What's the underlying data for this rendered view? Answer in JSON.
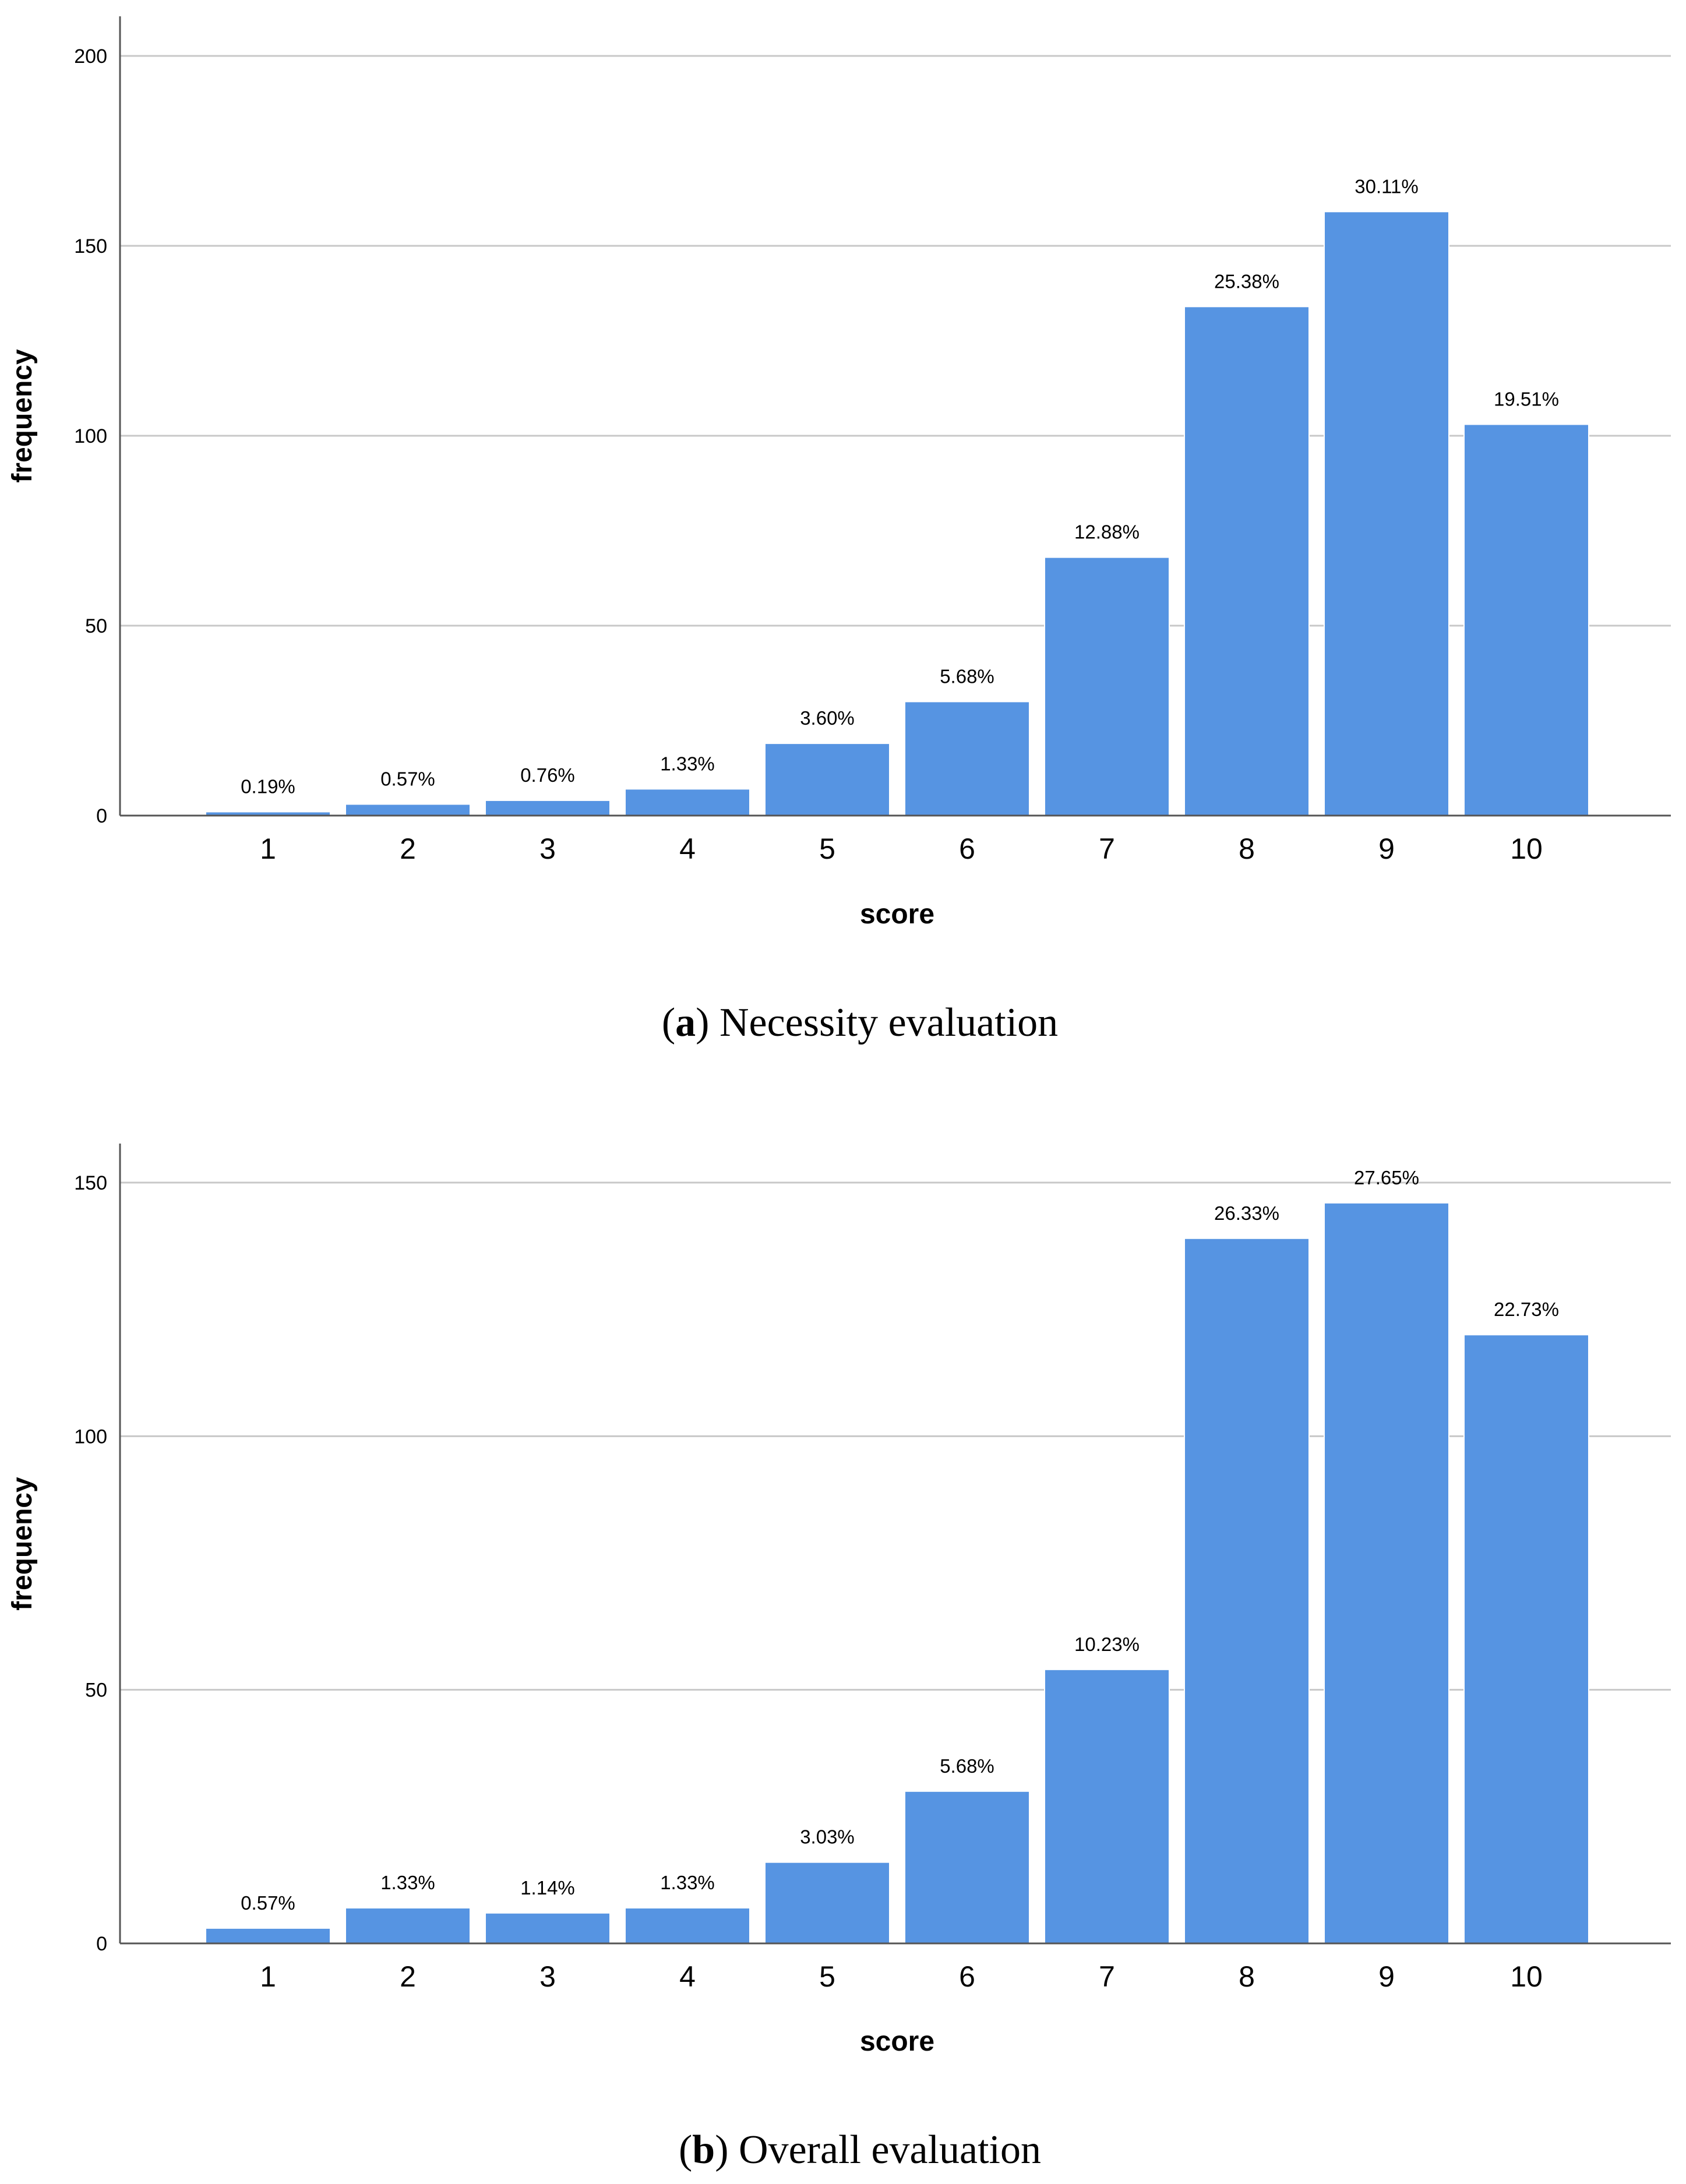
{
  "chart_data": [
    {
      "type": "bar",
      "panel": "a",
      "caption_letter": "a",
      "caption_text": "Necessity evaluation",
      "xlabel": "score",
      "ylabel": "frequency",
      "categories": [
        "1",
        "2",
        "3",
        "4",
        "5",
        "6",
        "7",
        "8",
        "9",
        "10"
      ],
      "values": [
        1,
        3,
        4,
        7,
        19,
        30,
        68,
        134,
        159,
        103
      ],
      "data_labels": [
        "0.19%",
        "0.57%",
        "0.76%",
        "1.33%",
        "3.60%",
        "5.68%",
        "12.88%",
        "25.38%",
        "30.11%",
        "19.51%"
      ],
      "ylim": [
        0,
        210
      ],
      "yticks": [
        0,
        50,
        100,
        150,
        200
      ],
      "grid": true,
      "bar_color": "#5694E2"
    },
    {
      "type": "bar",
      "panel": "b",
      "caption_letter": "b",
      "caption_text": "Overall evaluation",
      "xlabel": "score",
      "ylabel": "frequency",
      "categories": [
        "1",
        "2",
        "3",
        "4",
        "5",
        "6",
        "7",
        "8",
        "9",
        "10"
      ],
      "values": [
        3,
        7,
        6,
        7,
        16,
        30,
        54,
        139,
        146,
        120
      ],
      "data_labels": [
        "0.57%",
        "1.33%",
        "1.14%",
        "1.33%",
        "3.03%",
        "5.68%",
        "10.23%",
        "26.33%",
        "27.65%",
        "22.73%"
      ],
      "ylim": [
        0,
        158
      ],
      "yticks": [
        0,
        50,
        100,
        150
      ],
      "grid": true,
      "bar_color": "#5694E2"
    }
  ]
}
